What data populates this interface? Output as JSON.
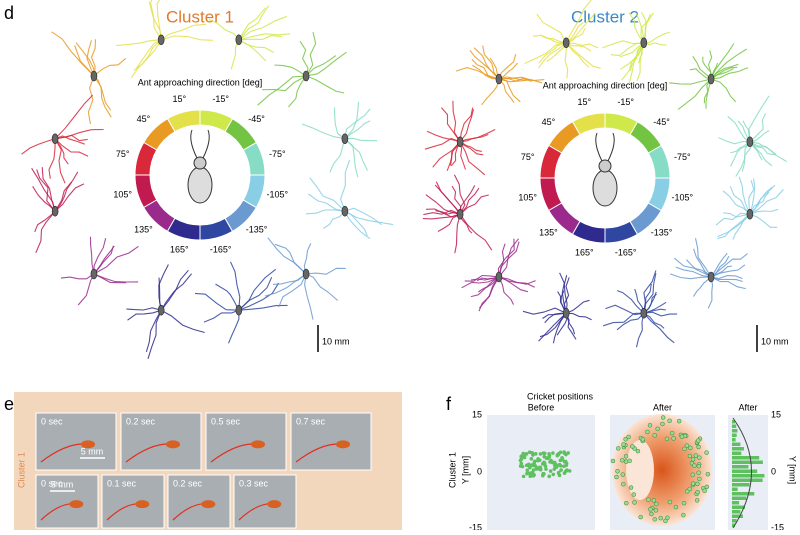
{
  "panel_d": {
    "label": "d",
    "clusters": [
      {
        "title": "Cluster 1",
        "ring_title": "Ant approaching direction [deg]",
        "directions": [
          "15°",
          "45°",
          "75°",
          "105°",
          "135°",
          "165°",
          "-165°",
          "-135°",
          "-105°",
          "-75°",
          "-45°",
          "-15°"
        ],
        "scale": "10 mm"
      },
      {
        "title": "Cluster 2",
        "ring_title": "Ant approaching direction [deg]",
        "directions": [
          "15°",
          "45°",
          "75°",
          "105°",
          "135°",
          "165°",
          "-165°",
          "-135°",
          "-105°",
          "-75°",
          "-45°",
          "-15°"
        ],
        "scale": "10 mm"
      }
    ]
  },
  "panel_e": {
    "label": "e",
    "side_label": "Cluster 1",
    "rows": [
      {
        "frames": [
          "0 sec",
          "0.2 sec",
          "0.5 sec",
          "0.7 sec"
        ],
        "scale": "5 mm"
      },
      {
        "frames": [
          "0 sec",
          "0.1 sec",
          "0.2 sec",
          "0.3 sec"
        ],
        "scale": "5 mm"
      }
    ]
  },
  "panel_f": {
    "label": "f",
    "title": "Cricket positions",
    "row_label": "Cluster 1",
    "y_label": "Y [mm]",
    "y_label_right": "Y [mm]",
    "plots": [
      "Before",
      "After",
      "After"
    ],
    "yticks": [
      15,
      0,
      -15
    ],
    "yticks_right": [
      15,
      0,
      -15
    ]
  }
}
